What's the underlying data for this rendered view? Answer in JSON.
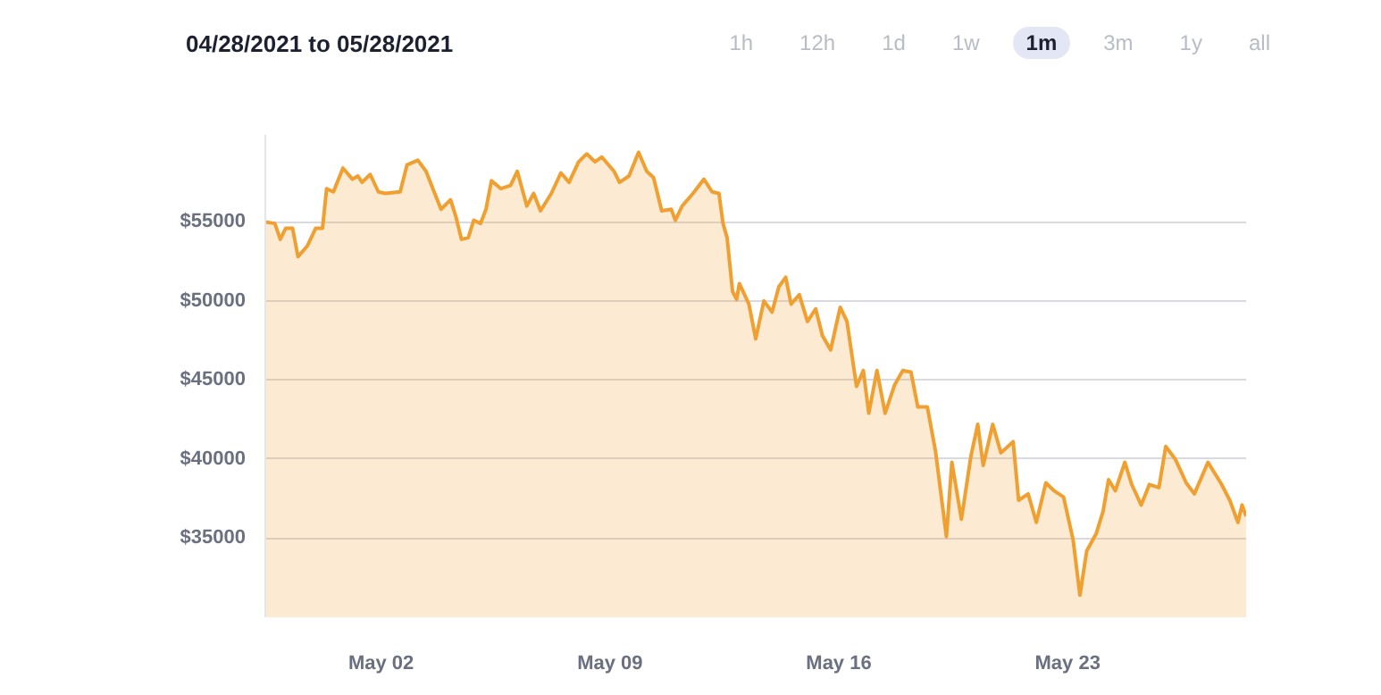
{
  "chart_data": {
    "type": "area",
    "title": "04/28/2021 to 05/28/2021",
    "annotations": [
      "1h",
      "12h",
      "1d",
      "1w",
      "1m",
      "3m",
      "1y",
      "all"
    ],
    "x": [
      "2021-04-28T11:00",
      "2021-04-28T18:00",
      "2021-04-28T22:00",
      "2021-04-29T02:00",
      "2021-04-29T07:00",
      "2021-04-29T11:00",
      "2021-04-29T18:00",
      "2021-04-30T00:00",
      "2021-04-30T05:00",
      "2021-04-30T08:00",
      "2021-04-30T13:00",
      "2021-04-30T20:00",
      "2021-05-01T03:00",
      "2021-05-01T07:00",
      "2021-05-01T10:00",
      "2021-05-01T16:00",
      "2021-05-01T22:00",
      "2021-05-02T03:00",
      "2021-05-02T14:00",
      "2021-05-02T19:00",
      "2021-05-03T03:00",
      "2021-05-03T09:00",
      "2021-05-03T14:00",
      "2021-05-03T20:00",
      "2021-05-04T03:00",
      "2021-05-04T07:00",
      "2021-05-04T11:00",
      "2021-05-04T16:00",
      "2021-05-04T20:00",
      "2021-05-05T01:00",
      "2021-05-05T05:00",
      "2021-05-05T09:00",
      "2021-05-05T16:00",
      "2021-05-05T23:00",
      "2021-05-06T04:00",
      "2021-05-06T11:00",
      "2021-05-06T16:00",
      "2021-05-06T21:00",
      "2021-05-07T05:00",
      "2021-05-07T12:00",
      "2021-05-07T18:00",
      "2021-05-08T01:00",
      "2021-05-08T07:00",
      "2021-05-08T13:00",
      "2021-05-08T18:00",
      "2021-05-09T03:00",
      "2021-05-09T07:00",
      "2021-05-09T14:00",
      "2021-05-09T21:00",
      "2021-05-10T03:00",
      "2021-05-10T08:00",
      "2021-05-10T14:00",
      "2021-05-10T21:00",
      "2021-05-11T00:00",
      "2021-05-11T05:00",
      "2021-05-11T13:00",
      "2021-05-11T21:00",
      "2021-05-12T03:00",
      "2021-05-12T08:00",
      "2021-05-12T11:00",
      "2021-05-12T14:00",
      "2021-05-12T18:00",
      "2021-05-12T21:00",
      "2021-05-12T23:00",
      "2021-05-13T06:00",
      "2021-05-13T11:00",
      "2021-05-13T17:00",
      "2021-05-13T23:00",
      "2021-05-14T04:00",
      "2021-05-14T09:00",
      "2021-05-14T13:00",
      "2021-05-14T19:00",
      "2021-05-15T01:00",
      "2021-05-15T07:00",
      "2021-05-15T12:00",
      "2021-05-15T18:00",
      "2021-05-16T01:00",
      "2021-05-16T06:00",
      "2021-05-16T13:00",
      "2021-05-16T18:00",
      "2021-05-16T22:00",
      "2021-05-17T04:00",
      "2021-05-17T10:00",
      "2021-05-17T17:00",
      "2021-05-17T23:00",
      "2021-05-18T05:00",
      "2021-05-18T10:00",
      "2021-05-18T17:00",
      "2021-05-18T23:00",
      "2021-05-19T07:00",
      "2021-05-19T11:00",
      "2021-05-19T18:00",
      "2021-05-20T01:00",
      "2021-05-20T06:00",
      "2021-05-20T10:00",
      "2021-05-20T17:00",
      "2021-05-20T23:00",
      "2021-05-21T08:00",
      "2021-05-21T12:00",
      "2021-05-21T19:00",
      "2021-05-22T01:00",
      "2021-05-22T08:00",
      "2021-05-22T14:00",
      "2021-05-22T21:00",
      "2021-05-23T04:00",
      "2021-05-23T09:00",
      "2021-05-23T14:00",
      "2021-05-23T21:00",
      "2021-05-24T02:00",
      "2021-05-24T06:00",
      "2021-05-24T11:00",
      "2021-05-24T18:00",
      "2021-05-24T23:00",
      "2021-05-25T06:00",
      "2021-05-25T12:00",
      "2021-05-25T19:00",
      "2021-05-26T00:00",
      "2021-05-26T07:00",
      "2021-05-26T15:00",
      "2021-05-26T21:00",
      "2021-05-27T07:00",
      "2021-05-27T17:00",
      "2021-05-27T23:00",
      "2021-05-28T05:00",
      "2021-05-28T08:00",
      "2021-05-28T11:00"
    ],
    "series": [
      {
        "color": "#f0a030",
        "values": [
          55000,
          54900,
          53900,
          54600,
          54600,
          52800,
          53500,
          54600,
          54600,
          57100,
          56900,
          58400,
          57700,
          57900,
          57500,
          58000,
          56900,
          56800,
          56900,
          58600,
          58900,
          58200,
          57100,
          55800,
          56400,
          55300,
          53900,
          54000,
          55100,
          54900,
          55800,
          57600,
          57100,
          57300,
          58200,
          56000,
          56800,
          55700,
          56800,
          58100,
          57500,
          58800,
          59300,
          58800,
          59100,
          58200,
          57500,
          57900,
          59400,
          58200,
          57800,
          55700,
          55800,
          55100,
          56000,
          56800,
          57700,
          56900,
          56800,
          54900,
          54000,
          50600,
          50100,
          51100,
          49800,
          47600,
          50000,
          49300,
          50900,
          51500,
          49800,
          50400,
          48700,
          49500,
          47800,
          46900,
          49600,
          48700,
          44600,
          45600,
          42900,
          45600,
          42900,
          44700,
          45600,
          45500,
          43300,
          43300,
          40500,
          35100,
          39800,
          36200,
          40200,
          42200,
          39600,
          42200,
          40400,
          41100,
          37400,
          37800,
          36000,
          38500,
          38000,
          37600,
          34900,
          31400,
          34200,
          35300,
          36700,
          38700,
          38000,
          39800,
          38400,
          37100,
          38400,
          38200,
          40800,
          40000,
          38500,
          37800,
          39800,
          38400,
          37400,
          36000,
          37100,
          36400
        ]
      }
    ],
    "xlim": [
      "2021-04-28T11:00",
      "2021-05-28T11:00"
    ],
    "ylim": [
      30000,
      60500
    ],
    "xticks": [
      {
        "value": "2021-05-02",
        "label": "May 02"
      },
      {
        "value": "2021-05-09",
        "label": "May 09"
      },
      {
        "value": "2021-05-16",
        "label": "May 16"
      },
      {
        "value": "2021-05-23",
        "label": "May 23"
      }
    ],
    "yticks": [
      {
        "value": 35000,
        "label": "$35000"
      },
      {
        "value": 40000,
        "label": "$40000"
      },
      {
        "value": 45000,
        "label": "$45000"
      },
      {
        "value": 50000,
        "label": "$50000"
      },
      {
        "value": 55000,
        "label": "$55000"
      }
    ],
    "grid": "y"
  }
}
